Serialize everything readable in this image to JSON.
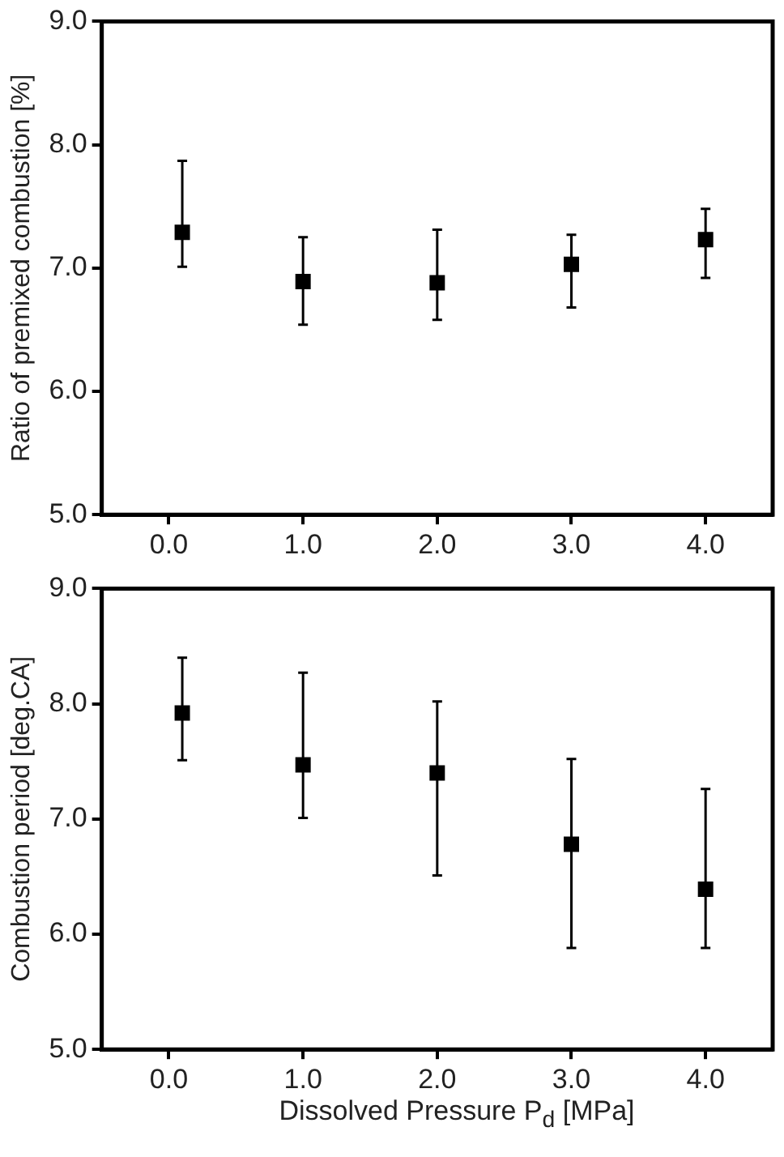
{
  "chart_data": [
    {
      "type": "scatter",
      "ylabel": "Ratio of premixed combustion [%]",
      "x": [
        0.1,
        1,
        2,
        3,
        4
      ],
      "series": [
        {
          "color": "#000000",
          "values": [
            7.29,
            6.89,
            6.88,
            7.03,
            7.23
          ],
          "errors": [
            [
              7.01,
              7.87
            ],
            [
              6.54,
              7.25
            ],
            [
              6.58,
              7.31
            ],
            [
              6.68,
              7.27
            ],
            [
              6.92,
              7.48
            ]
          ]
        }
      ],
      "xlim": [
        -0.5,
        4.5
      ],
      "xticks": [
        {
          "value": 0,
          "label": "0.0"
        },
        {
          "value": 1,
          "label": "1.0"
        },
        {
          "value": 2,
          "label": "2.0"
        },
        {
          "value": 3,
          "label": "3.0"
        },
        {
          "value": 4,
          "label": "4.0"
        }
      ],
      "ylim": [
        5,
        9
      ],
      "yticks": [
        {
          "value": 5,
          "label": "5.0"
        },
        {
          "value": 6,
          "label": "6.0"
        },
        {
          "value": 7,
          "label": "7.0"
        },
        {
          "value": 8,
          "label": "8.0"
        },
        {
          "value": 9,
          "label": "9.0"
        }
      ],
      "marker": "square",
      "grid": false,
      "legend": false
    },
    {
      "type": "scatter",
      "ylabel": "Combustion period [deg.CA]",
      "xlabel": "Dissolved Pressure P$_{d}$ [MPa]",
      "x": [
        0.1,
        1,
        2,
        3,
        4
      ],
      "series": [
        {
          "color": "#000000",
          "values": [
            7.92,
            7.47,
            7.4,
            6.78,
            6.39
          ],
          "errors": [
            [
              7.51,
              8.4
            ],
            [
              7.01,
              8.27
            ],
            [
              6.51,
              8.02
            ],
            [
              5.88,
              7.52
            ],
            [
              5.88,
              7.26
            ]
          ]
        }
      ],
      "xlim": [
        -0.5,
        4.5
      ],
      "xticks": [
        {
          "value": 0,
          "label": "0.0"
        },
        {
          "value": 1,
          "label": "1.0"
        },
        {
          "value": 2,
          "label": "2.0"
        },
        {
          "value": 3,
          "label": "3.0"
        },
        {
          "value": 4,
          "label": "4.0"
        }
      ],
      "ylim": [
        5,
        9
      ],
      "yticks": [
        {
          "value": 5,
          "label": "5.0"
        },
        {
          "value": 6,
          "label": "6.0"
        },
        {
          "value": 7,
          "label": "7.0"
        },
        {
          "value": 8,
          "label": "8.0"
        },
        {
          "value": 9,
          "label": "9.0"
        }
      ],
      "marker": "square",
      "grid": false,
      "legend": false
    }
  ]
}
